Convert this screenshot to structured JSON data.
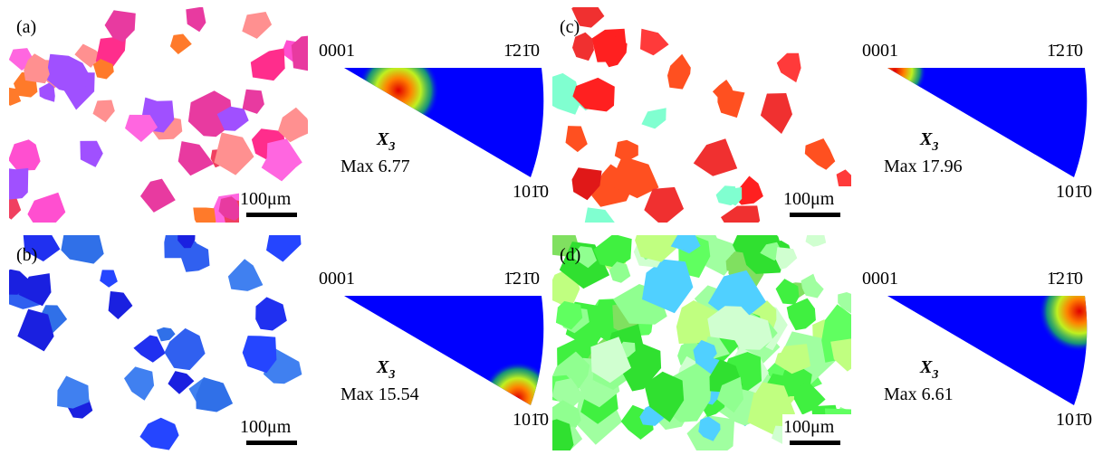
{
  "panels": [
    {
      "label": "(a)",
      "scale_bar": "100μm",
      "ipf": {
        "top_left": "0001",
        "top_right": "1̄21̄0",
        "bottom": "101̄0",
        "symbol": "X",
        "subscript": "3",
        "max": "Max 6.77"
      }
    },
    {
      "label": "(b)",
      "scale_bar": "100μm",
      "ipf": {
        "top_left": "0001",
        "top_right": "1̄21̄0",
        "bottom": "101̄0",
        "symbol": "X",
        "subscript": "3",
        "max": "Max 15.54"
      }
    },
    {
      "label": "(c)",
      "scale_bar": "100μm",
      "ipf": {
        "top_left": "0001",
        "top_right": "1̄21̄0",
        "bottom": "101̄0",
        "symbol": "X",
        "subscript": "3",
        "max": "Max 17.96"
      }
    },
    {
      "label": "(d)",
      "scale_bar": "100μm",
      "ipf": {
        "top_left": "0001",
        "top_right": "1̄21̄0",
        "bottom": "101̄0",
        "symbol": "X",
        "subscript": "3",
        "max": "Max 6.61"
      }
    }
  ]
}
